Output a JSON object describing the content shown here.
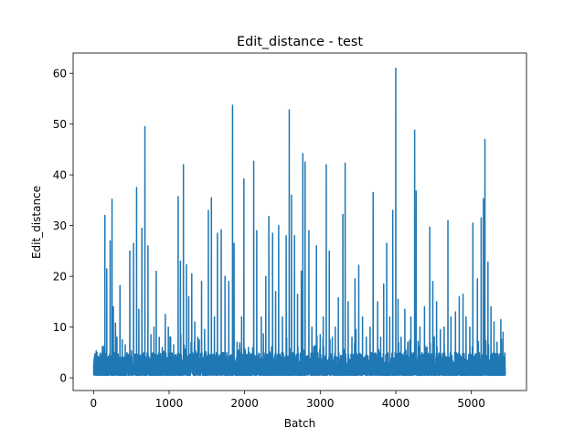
{
  "chart_data": {
    "type": "line",
    "title": "Edit_distance - test",
    "xlabel": "Batch",
    "ylabel": "Edit_distance",
    "xlim": [
      -270,
      5730
    ],
    "ylim": [
      -2.5,
      64
    ],
    "xticks": [
      0,
      1000,
      2000,
      3000,
      4000,
      5000
    ],
    "yticks": [
      0,
      10,
      20,
      30,
      40,
      50,
      60
    ],
    "n_points": 5450,
    "series": [
      {
        "color": "#1f77b4",
        "baseline_range": [
          0.5,
          5.0
        ],
        "peaks": [
          [
            45,
            3.5
          ],
          [
            130,
            6.2
          ],
          [
            150,
            32
          ],
          [
            175,
            21.5
          ],
          [
            205,
            3
          ],
          [
            220,
            27
          ],
          [
            245,
            35.2
          ],
          [
            262,
            14
          ],
          [
            290,
            10.8
          ],
          [
            310,
            8
          ],
          [
            350,
            18.2
          ],
          [
            380,
            7.5
          ],
          [
            420,
            6.5
          ],
          [
            480,
            25
          ],
          [
            530,
            26.5
          ],
          [
            570,
            37.5
          ],
          [
            600,
            13.5
          ],
          [
            640,
            29.5
          ],
          [
            680,
            49.5
          ],
          [
            720,
            26
          ],
          [
            760,
            8.5
          ],
          [
            800,
            10
          ],
          [
            830,
            21
          ],
          [
            870,
            8
          ],
          [
            910,
            6
          ],
          [
            950,
            12.5
          ],
          [
            990,
            10
          ],
          [
            1020,
            8
          ],
          [
            1060,
            6.5
          ],
          [
            1120,
            35.7
          ],
          [
            1150,
            23
          ],
          [
            1190,
            42
          ],
          [
            1230,
            22.3
          ],
          [
            1260,
            16
          ],
          [
            1300,
            20.5
          ],
          [
            1340,
            11
          ],
          [
            1380,
            8
          ],
          [
            1430,
            19
          ],
          [
            1470,
            9.5
          ],
          [
            1520,
            33
          ],
          [
            1560,
            35.5
          ],
          [
            1600,
            12
          ],
          [
            1640,
            28.5
          ],
          [
            1690,
            29.2
          ],
          [
            1740,
            20
          ],
          [
            1790,
            19
          ],
          [
            1840,
            53.7
          ],
          [
            1860,
            26.5
          ],
          [
            1900,
            7
          ],
          [
            1960,
            12
          ],
          [
            1990,
            39.2
          ],
          [
            2050,
            6
          ],
          [
            2120,
            42.7
          ],
          [
            2160,
            29
          ],
          [
            2220,
            12
          ],
          [
            2280,
            20
          ],
          [
            2320,
            31.8
          ],
          [
            2370,
            28.5
          ],
          [
            2410,
            17
          ],
          [
            2450,
            30
          ],
          [
            2500,
            12
          ],
          [
            2550,
            28
          ],
          [
            2590,
            52.8
          ],
          [
            2620,
            36
          ],
          [
            2660,
            28
          ],
          [
            2700,
            16.5
          ],
          [
            2750,
            21
          ],
          [
            2770,
            44.2
          ],
          [
            2800,
            42.5
          ],
          [
            2850,
            29
          ],
          [
            2890,
            10
          ],
          [
            2950,
            26
          ],
          [
            3000,
            8.5
          ],
          [
            3040,
            12
          ],
          [
            3080,
            42
          ],
          [
            3120,
            25
          ],
          [
            3160,
            8
          ],
          [
            3200,
            10
          ],
          [
            3240,
            15.8
          ],
          [
            3300,
            32.2
          ],
          [
            3330,
            42.3
          ],
          [
            3370,
            15
          ],
          [
            3420,
            8
          ],
          [
            3460,
            19.5
          ],
          [
            3510,
            22.2
          ],
          [
            3560,
            12
          ],
          [
            3610,
            8
          ],
          [
            3660,
            10
          ],
          [
            3700,
            36.5
          ],
          [
            3760,
            15
          ],
          [
            3800,
            8
          ],
          [
            3840,
            18.5
          ],
          [
            3880,
            26.5
          ],
          [
            3920,
            12
          ],
          [
            3960,
            33
          ],
          [
            4000,
            61
          ],
          [
            4030,
            15.5
          ],
          [
            4070,
            8
          ],
          [
            4120,
            13.5
          ],
          [
            4160,
            7
          ],
          [
            4200,
            12
          ],
          [
            4250,
            48.8
          ],
          [
            4270,
            36.8
          ],
          [
            4320,
            10
          ],
          [
            4380,
            14
          ],
          [
            4450,
            29.7
          ],
          [
            4490,
            19
          ],
          [
            4540,
            15
          ],
          [
            4590,
            9.5
          ],
          [
            4640,
            10
          ],
          [
            4690,
            31
          ],
          [
            4730,
            12
          ],
          [
            4790,
            13
          ],
          [
            4840,
            16
          ],
          [
            4890,
            16.5
          ],
          [
            4930,
            12
          ],
          [
            4980,
            10
          ],
          [
            5020,
            30.5
          ],
          [
            5080,
            19.5
          ],
          [
            5130,
            31.5
          ],
          [
            5160,
            35.3
          ],
          [
            5180,
            47
          ],
          [
            5220,
            22.8
          ],
          [
            5260,
            14
          ],
          [
            5300,
            11
          ],
          [
            5340,
            7
          ],
          [
            5390,
            11.5
          ],
          [
            5420,
            9
          ]
        ]
      }
    ]
  }
}
